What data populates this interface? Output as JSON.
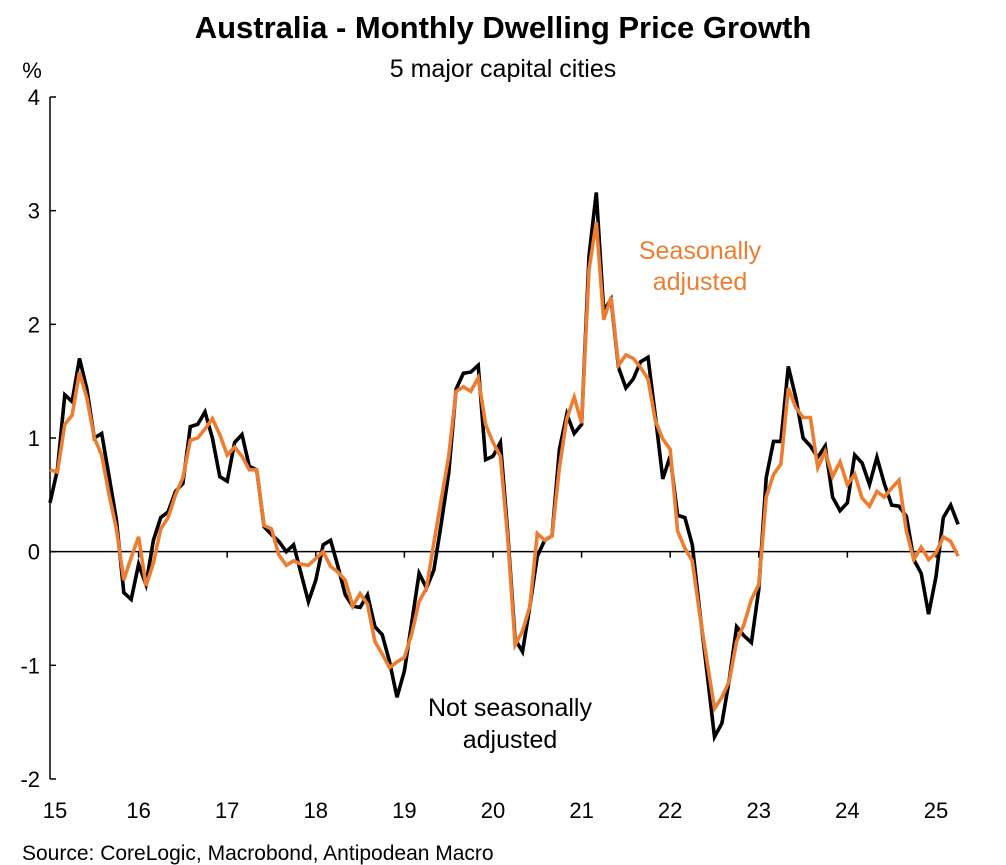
{
  "chart_data": {
    "type": "line",
    "title": "Australia - Monthly Dwelling Price Growth",
    "subtitle": "5 major capital cities",
    "ylabel": "%",
    "xlabel": "",
    "ylim": [
      -2,
      4
    ],
    "yticks": [
      "-2",
      "-1",
      "0",
      "1",
      "2",
      "3",
      "4"
    ],
    "ytick_values": [
      -2,
      -1,
      0,
      1,
      2,
      3,
      4
    ],
    "xtick_labels": [
      "15",
      "16",
      "17",
      "18",
      "19",
      "20",
      "21",
      "22",
      "23",
      "24",
      "25"
    ],
    "xtick_years": [
      2015,
      2016,
      2017,
      2018,
      2019,
      2020,
      2021,
      2022,
      2023,
      2024,
      2025
    ],
    "x_start": "2015-01",
    "frequency": "monthly",
    "grid": false,
    "series": [
      {
        "name": "Not seasonally adjusted",
        "label": "Not seasonally adjusted",
        "color": "#000000",
        "values": [
          0.43,
          0.72,
          1.38,
          1.32,
          1.7,
          1.43,
          1.0,
          1.04,
          0.66,
          0.28,
          -0.36,
          -0.42,
          -0.11,
          -0.29,
          0.1,
          0.3,
          0.35,
          0.53,
          0.6,
          1.1,
          1.12,
          1.23,
          1.0,
          0.66,
          0.62,
          0.96,
          1.03,
          0.75,
          0.72,
          0.22,
          0.15,
          0.09,
          0.0,
          0.06,
          -0.19,
          -0.44,
          -0.25,
          0.06,
          0.1,
          -0.13,
          -0.38,
          -0.48,
          -0.49,
          -0.38,
          -0.66,
          -0.73,
          -0.97,
          -1.28,
          -1.05,
          -0.62,
          -0.19,
          -0.32,
          -0.16,
          0.25,
          0.69,
          1.43,
          1.57,
          1.58,
          1.64,
          0.81,
          0.84,
          0.96,
          0.17,
          -0.77,
          -0.88,
          -0.48,
          -0.04,
          0.1,
          0.14,
          0.9,
          1.21,
          1.04,
          1.12,
          2.6,
          3.16,
          2.12,
          2.22,
          1.62,
          1.44,
          1.52,
          1.67,
          1.71,
          1.19,
          0.64,
          0.84,
          0.32,
          0.3,
          0.06,
          -0.52,
          -1.07,
          -1.63,
          -1.51,
          -1.13,
          -0.66,
          -0.74,
          -0.8,
          -0.33,
          0.65,
          0.97,
          0.97,
          1.63,
          1.36,
          1.0,
          0.93,
          0.83,
          0.93,
          0.48,
          0.36,
          0.43,
          0.85,
          0.78,
          0.59,
          0.83,
          0.6,
          0.41,
          0.4,
          0.31,
          -0.07,
          -0.19,
          -0.55,
          -0.22,
          0.3,
          0.41,
          0.24
        ]
      },
      {
        "name": "Seasonally adjusted",
        "label": "Seasonally adjusted",
        "color": "#ED7D31",
        "values": [
          0.72,
          0.7,
          1.12,
          1.2,
          1.58,
          1.35,
          1.0,
          0.85,
          0.5,
          0.2,
          -0.25,
          -0.05,
          0.13,
          -0.3,
          -0.1,
          0.2,
          0.3,
          0.5,
          0.65,
          0.98,
          1.0,
          1.08,
          1.17,
          1.03,
          0.85,
          0.92,
          0.84,
          0.72,
          0.72,
          0.23,
          0.2,
          -0.03,
          -0.12,
          -0.08,
          -0.11,
          -0.12,
          -0.06,
          0.0,
          -0.13,
          -0.18,
          -0.25,
          -0.48,
          -0.37,
          -0.46,
          -0.79,
          -0.9,
          -1.02,
          -0.97,
          -0.93,
          -0.72,
          -0.44,
          -0.32,
          0.08,
          0.46,
          0.84,
          1.41,
          1.45,
          1.41,
          1.53,
          1.12,
          0.96,
          0.84,
          0.12,
          -0.82,
          -0.7,
          -0.48,
          0.16,
          0.1,
          0.14,
          0.74,
          1.17,
          1.36,
          1.13,
          2.48,
          2.9,
          2.04,
          2.24,
          1.64,
          1.73,
          1.7,
          1.62,
          1.52,
          1.15,
          0.99,
          0.9,
          0.18,
          0.03,
          -0.08,
          -0.55,
          -0.97,
          -1.38,
          -1.28,
          -1.14,
          -0.79,
          -0.64,
          -0.42,
          -0.29,
          0.48,
          0.68,
          0.77,
          1.44,
          1.27,
          1.18,
          1.18,
          0.74,
          0.88,
          0.66,
          0.79,
          0.59,
          0.68,
          0.47,
          0.4,
          0.53,
          0.48,
          0.56,
          0.63,
          0.18,
          -0.07,
          0.04,
          -0.07,
          -0.01,
          0.13,
          0.09,
          -0.04
        ]
      }
    ],
    "annotations": {
      "nsa_line1": "Not seasonally",
      "nsa_line2": "adjusted",
      "sa_line1": "Seasonally",
      "sa_line2": "adjusted"
    },
    "source": "Source: CoreLogic, Macrobond, Antipodean Macro"
  }
}
